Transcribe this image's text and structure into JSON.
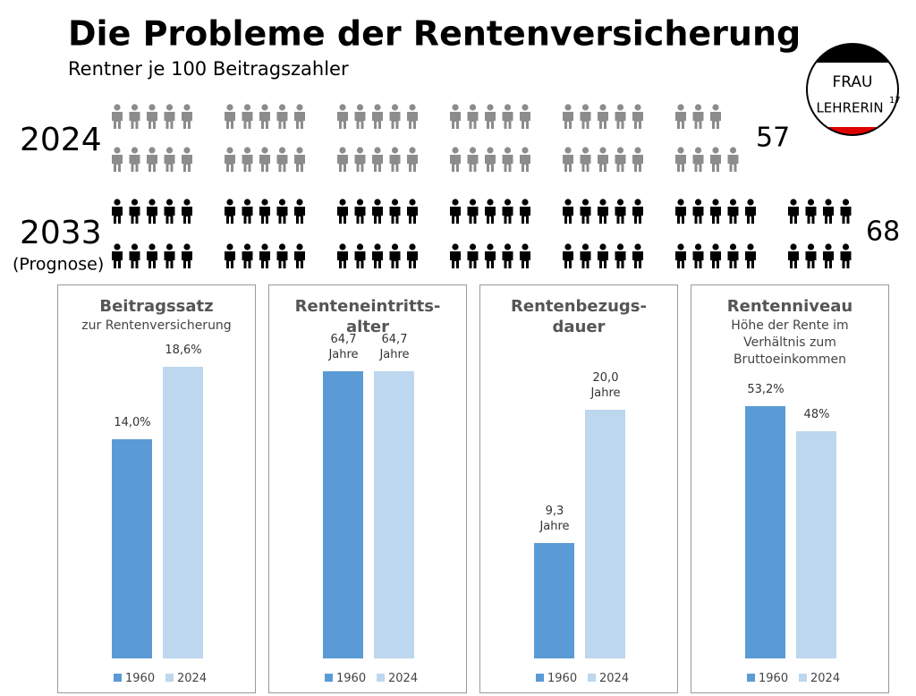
{
  "title": "Die Probleme der Rentenversicherung",
  "subtitle": "Rentner je 100 Beitragszahler",
  "logo": {
    "line1": "FRAU",
    "line2": "LEHRERIN",
    "superscript": "17"
  },
  "pictogram": {
    "per_group": 10,
    "rows": [
      {
        "label": "2024",
        "value": 57,
        "color": "#8c8c8c"
      },
      {
        "label": "2033",
        "note": "(Prognose)",
        "value": 68,
        "color": "#000000"
      }
    ]
  },
  "chart_data": [
    {
      "type": "bar",
      "title": "Beitragssatz",
      "subtitle": "zur Rentenversicherung",
      "categories": [
        "1960",
        "2024"
      ],
      "colors": [
        "#5b9bd5",
        "#bdd7ee"
      ],
      "values": [
        14.0,
        18.6
      ],
      "value_labels": [
        "14,0%",
        "18,6%"
      ],
      "ylim": [
        0,
        21.4
      ]
    },
    {
      "type": "bar",
      "title": "Renteneintritts-alter",
      "categories": [
        "1960",
        "2024"
      ],
      "colors": [
        "#5b9bd5",
        "#bdd7ee"
      ],
      "values": [
        64.7,
        64.7
      ],
      "value_labels": [
        "64,7 Jahre",
        "64,7 Jahre"
      ],
      "ylim": [
        0,
        75.6
      ]
    },
    {
      "type": "bar",
      "title": "Rentenbezugs-dauer",
      "categories": [
        "1960",
        "2024"
      ],
      "colors": [
        "#5b9bd5",
        "#bdd7ee"
      ],
      "values": [
        9.3,
        20.0
      ],
      "value_labels": [
        "9,3 Jahre",
        "20,0 Jahre"
      ],
      "ylim": [
        0,
        27
      ]
    },
    {
      "type": "bar",
      "title": "Rentenniveau",
      "subtitle": "Höhe der Rente im Verhältnis zum Bruttoeinkommen",
      "categories": [
        "1960",
        "2024"
      ],
      "colors": [
        "#5b9bd5",
        "#bdd7ee"
      ],
      "values": [
        53.2,
        48
      ],
      "value_labels": [
        "53,2%",
        "48%"
      ],
      "ylim": [
        0,
        70.8
      ]
    }
  ]
}
